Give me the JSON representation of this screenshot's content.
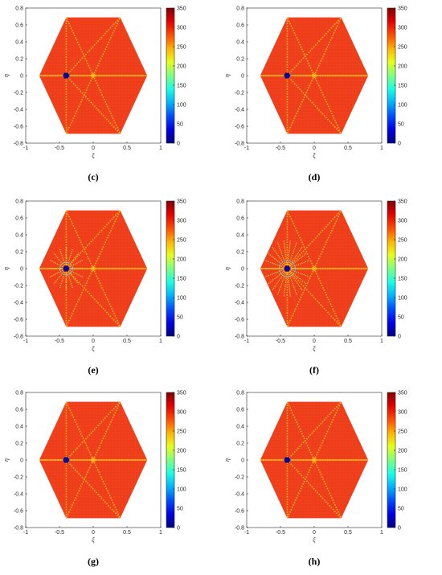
{
  "figure": {
    "panels": [
      {
        "id": "c",
        "caption": "(c)",
        "defect_spread": 0
      },
      {
        "id": "d",
        "caption": "(d)",
        "defect_spread": 0
      },
      {
        "id": "e",
        "caption": "(e)",
        "defect_spread": 1
      },
      {
        "id": "f",
        "caption": "(f)",
        "defect_spread": 2
      },
      {
        "id": "g",
        "caption": "(g)",
        "defect_spread": 0
      },
      {
        "id": "h",
        "caption": "(h)",
        "defect_spread": 0
      }
    ]
  },
  "chart_data": {
    "type": "heatmap",
    "description_values": "hexagonal lattice field plotted over xi-eta plane, colorbar 0-350",
    "xlabel": "ξ",
    "ylabel": "η",
    "xlim": [
      -1,
      1
    ],
    "ylim": [
      -0.8,
      0.8
    ],
    "xticks": [
      "-1",
      "-0.5",
      "0",
      "0.5",
      "1"
    ],
    "yticks": [
      "0.8",
      "0.6",
      "0.4",
      "0.2",
      "0",
      "-0.2",
      "-0.4",
      "-0.6",
      "-0.8"
    ],
    "colorbar": {
      "min": 0,
      "max": 350,
      "ticks": [
        "350",
        "300",
        "250",
        "200",
        "150",
        "100",
        "50",
        "0"
      ],
      "colormap": "jet"
    },
    "hexagon_vertices": [
      [
        -0.8,
        0
      ],
      [
        -0.4,
        0.69
      ],
      [
        0.4,
        0.69
      ],
      [
        0.8,
        0
      ],
      [
        0.4,
        -0.69
      ],
      [
        -0.4,
        -0.69
      ]
    ],
    "background_value": 320,
    "defect_center": [
      -0.4,
      0
    ],
    "defect_value": 0,
    "colors": {
      "field": "#f0401c",
      "ridge": "#f7c81f",
      "defect": "#0b0a8f",
      "axes": "#262626"
    }
  }
}
